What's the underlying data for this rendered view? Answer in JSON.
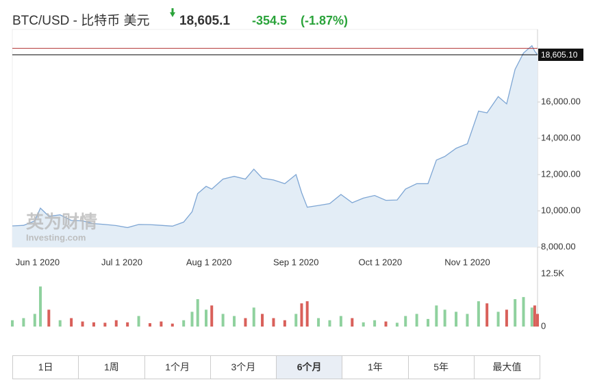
{
  "chart_data": {
    "type": "area",
    "title": "BTC/USD - 比特币 美元",
    "price": "18,605.1",
    "change": "-354.5",
    "change_pct": "(-1.87%)",
    "watermark": [
      "英为财情",
      "Investing.com"
    ],
    "x": [
      "2020-05-23",
      "2020-05-27",
      "2020-05-31",
      "2020-06-02",
      "2020-06-05",
      "2020-06-09",
      "2020-06-13",
      "2020-06-17",
      "2020-06-21",
      "2020-06-25",
      "2020-06-29",
      "2020-07-03",
      "2020-07-07",
      "2020-07-11",
      "2020-07-15",
      "2020-07-19",
      "2020-07-23",
      "2020-07-26",
      "2020-07-28",
      "2020-07-31",
      "2020-08-02",
      "2020-08-06",
      "2020-08-10",
      "2020-08-14",
      "2020-08-17",
      "2020-08-20",
      "2020-08-24",
      "2020-08-28",
      "2020-09-01",
      "2020-09-03",
      "2020-09-05",
      "2020-09-09",
      "2020-09-13",
      "2020-09-17",
      "2020-09-21",
      "2020-09-25",
      "2020-09-29",
      "2020-10-03",
      "2020-10-07",
      "2020-10-10",
      "2020-10-14",
      "2020-10-18",
      "2020-10-21",
      "2020-10-24",
      "2020-10-28",
      "2020-11-01",
      "2020-11-05",
      "2020-11-08",
      "2020-11-12",
      "2020-11-15",
      "2020-11-18",
      "2020-11-21",
      "2020-11-24",
      "2020-11-25",
      "2020-11-26"
    ],
    "values": [
      9170,
      9200,
      9450,
      10150,
      9700,
      9780,
      9470,
      9450,
      9300,
      9250,
      9190,
      9080,
      9250,
      9240,
      9200,
      9160,
      9380,
      9950,
      10950,
      11350,
      11200,
      11750,
      11900,
      11750,
      12300,
      11800,
      11700,
      11500,
      12000,
      11000,
      10200,
      10300,
      10400,
      10900,
      10450,
      10700,
      10850,
      10580,
      10600,
      11200,
      11500,
      11500,
      12800,
      13000,
      13450,
      13700,
      15500,
      15400,
      16300,
      15900,
      17800,
      18700,
      19100,
      18800,
      18605.1
    ],
    "color": "#7ea6d4",
    "fill": "#e3edf6",
    "xlim": [
      "2020-05-23",
      "2020-11-26"
    ],
    "xticks": [
      {
        "value": "2020-06-01",
        "label": "Jun 1 2020"
      },
      {
        "value": "2020-07-01",
        "label": "Jul 1 2020"
      },
      {
        "value": "2020-08-01",
        "label": "Aug 1 2020"
      },
      {
        "value": "2020-09-01",
        "label": "Sep 1 2020"
      },
      {
        "value": "2020-10-01",
        "label": "Oct 1 2020"
      },
      {
        "value": "2020-11-01",
        "label": "Nov 1 2020"
      }
    ],
    "ylim": [
      8000,
      20000
    ],
    "yticks": [
      {
        "value": 8000,
        "label": "8,000.00"
      },
      {
        "value": 10000,
        "label": "10,000.00"
      },
      {
        "value": 12000,
        "label": "12,000.00"
      },
      {
        "value": 14000,
        "label": "14,000.00"
      },
      {
        "value": 16000,
        "label": "16,000.00"
      }
    ],
    "current": {
      "value": 18605.1,
      "label": "18,605.10"
    },
    "prev_close": 18959.6,
    "volume": {
      "values": [
        1500,
        2000,
        3000,
        9500,
        4000,
        1500,
        2000,
        1200,
        1000,
        900,
        1500,
        1000,
        2500,
        800,
        1200,
        700,
        1500,
        3500,
        6500,
        4000,
        5000,
        3000,
        2500,
        2000,
        4500,
        3000,
        2000,
        1500,
        3000,
        5500,
        6000,
        2000,
        1500,
        2500,
        2000,
        1000,
        1500,
        1200,
        900,
        2500,
        3000,
        1800,
        5000,
        4000,
        3500,
        3000,
        6000,
        5500,
        3500,
        4000,
        6500,
        7000,
        4500,
        5000,
        3000
      ],
      "up_color": "#8fd19e",
      "down_color": "#d9605a",
      "ylim": [
        0,
        12500
      ],
      "yticks": [
        0,
        {
          "value": 12500,
          "label": "12.5K"
        }
      ]
    },
    "ranges": [
      "1日",
      "1周",
      "1个月",
      "3个月",
      "6个月",
      "1年",
      "5年",
      "最大值"
    ],
    "active_range": 4
  }
}
